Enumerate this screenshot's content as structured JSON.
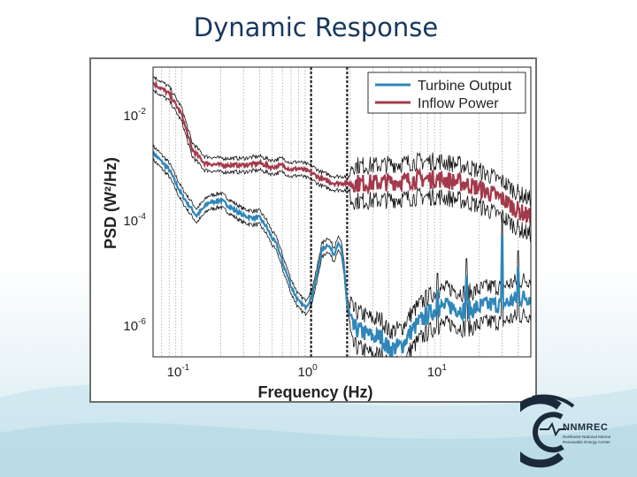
{
  "slide": {
    "title": "Dynamic Response"
  },
  "logo": {
    "name": "NNMREC",
    "subtitle": "Northwest National Marine Renewable Energy Center"
  },
  "colors": {
    "title": "#17375e",
    "turbine": "#2f86b8",
    "inflow": "#a33a4c",
    "band": "#111111"
  },
  "chart_data": {
    "type": "line",
    "xlabel": "Frequency (Hz)",
    "ylabel": "PSD (W²/Hz)",
    "xscale": "log",
    "yscale": "log",
    "xlim": [
      0.06,
      50
    ],
    "ylim": [
      2.5e-07,
      0.08
    ],
    "xticks": [
      {
        "value": 0.1,
        "label": "10",
        "exp": "-1"
      },
      {
        "value": 1,
        "label": "10",
        "exp": "0"
      },
      {
        "value": 10,
        "label": "10",
        "exp": "1"
      }
    ],
    "yticks": [
      {
        "value": 1e-06,
        "label": "10",
        "exp": "-6"
      },
      {
        "value": 0.0001,
        "label": "10",
        "exp": "-4"
      },
      {
        "value": 0.01,
        "label": "10",
        "exp": "-2"
      }
    ],
    "grid": "x-minor",
    "vertical_markers": [
      1.0,
      1.9
    ],
    "legend_position": "top-right",
    "series": [
      {
        "name": "Turbine Output",
        "color": "#2f86b8",
        "points": [
          [
            0.06,
            0.0019
          ],
          [
            0.08,
            0.0009
          ],
          [
            0.1,
            0.0003
          ],
          [
            0.13,
            0.00012
          ],
          [
            0.16,
            0.00021
          ],
          [
            0.2,
            0.00024
          ],
          [
            0.25,
            0.00016
          ],
          [
            0.3,
            0.00012
          ],
          [
            0.35,
            0.00011
          ],
          [
            0.4,
            0.00011
          ],
          [
            0.45,
            7.5e-05
          ],
          [
            0.5,
            4.5e-05
          ],
          [
            0.55,
            3.2e-05
          ],
          [
            0.6,
            1.6e-05
          ],
          [
            0.7,
            5.5e-06
          ],
          [
            0.8,
            2.8e-06
          ],
          [
            0.9,
            2.2e-06
          ],
          [
            1.0,
            3.2e-06
          ],
          [
            1.1,
            8e-06
          ],
          [
            1.2,
            2.5e-05
          ],
          [
            1.35,
            3.5e-05
          ],
          [
            1.5,
            2.2e-05
          ],
          [
            1.6,
            3.5e-05
          ],
          [
            1.7,
            3e-05
          ],
          [
            1.8,
            1.2e-05
          ],
          [
            1.9,
            2.5e-06
          ],
          [
            2.1,
            9e-07
          ],
          [
            2.5,
            7.5e-07
          ],
          [
            3,
            6e-07
          ],
          [
            3.5,
            6e-07
          ],
          [
            4,
            3.5e-07
          ],
          [
            4.5,
            3.8e-07
          ],
          [
            5,
            4e-07
          ],
          [
            6,
            8e-07
          ],
          [
            7,
            1.2e-06
          ],
          [
            8,
            1.6e-06
          ],
          [
            9,
            1.9e-06
          ],
          [
            10,
            2.2e-06
          ],
          [
            12,
            2.3e-06
          ],
          [
            15,
            1.9e-06
          ],
          [
            18,
            2e-06
          ],
          [
            20,
            2.2e-06
          ],
          [
            25,
            2.5e-06
          ],
          [
            30,
            2.5e-06
          ],
          [
            40,
            3.2e-06
          ],
          [
            50,
            3.5e-06
          ]
        ],
        "peaks": [
          [
            9.5,
            4.5e-06
          ],
          [
            16,
            8.5e-06
          ],
          [
            22,
            3.2e-06
          ],
          [
            30,
            4.8e-05
          ],
          [
            40,
            1.2e-05
          ]
        ]
      },
      {
        "name": "Inflow Power",
        "color": "#a33a4c",
        "points": [
          [
            0.06,
            0.04
          ],
          [
            0.08,
            0.025
          ],
          [
            0.1,
            0.01
          ],
          [
            0.12,
            0.0022
          ],
          [
            0.15,
            0.0012
          ],
          [
            0.2,
            0.0011
          ],
          [
            0.3,
            0.0011
          ],
          [
            0.4,
            0.0012
          ],
          [
            0.5,
            0.001
          ],
          [
            0.6,
            0.0011
          ],
          [
            0.7,
            0.0009
          ],
          [
            0.8,
            0.00095
          ],
          [
            1.0,
            0.0008
          ],
          [
            1.2,
            0.0006
          ],
          [
            1.5,
            0.0005
          ],
          [
            2,
            0.0005
          ],
          [
            3,
            0.0005
          ],
          [
            5,
            0.00055
          ],
          [
            7,
            0.0006
          ],
          [
            10,
            0.0006
          ],
          [
            15,
            0.0005
          ],
          [
            20,
            0.0004
          ],
          [
            30,
            0.00025
          ],
          [
            40,
            0.00015
          ],
          [
            50,
            0.00011
          ]
        ]
      }
    ]
  }
}
